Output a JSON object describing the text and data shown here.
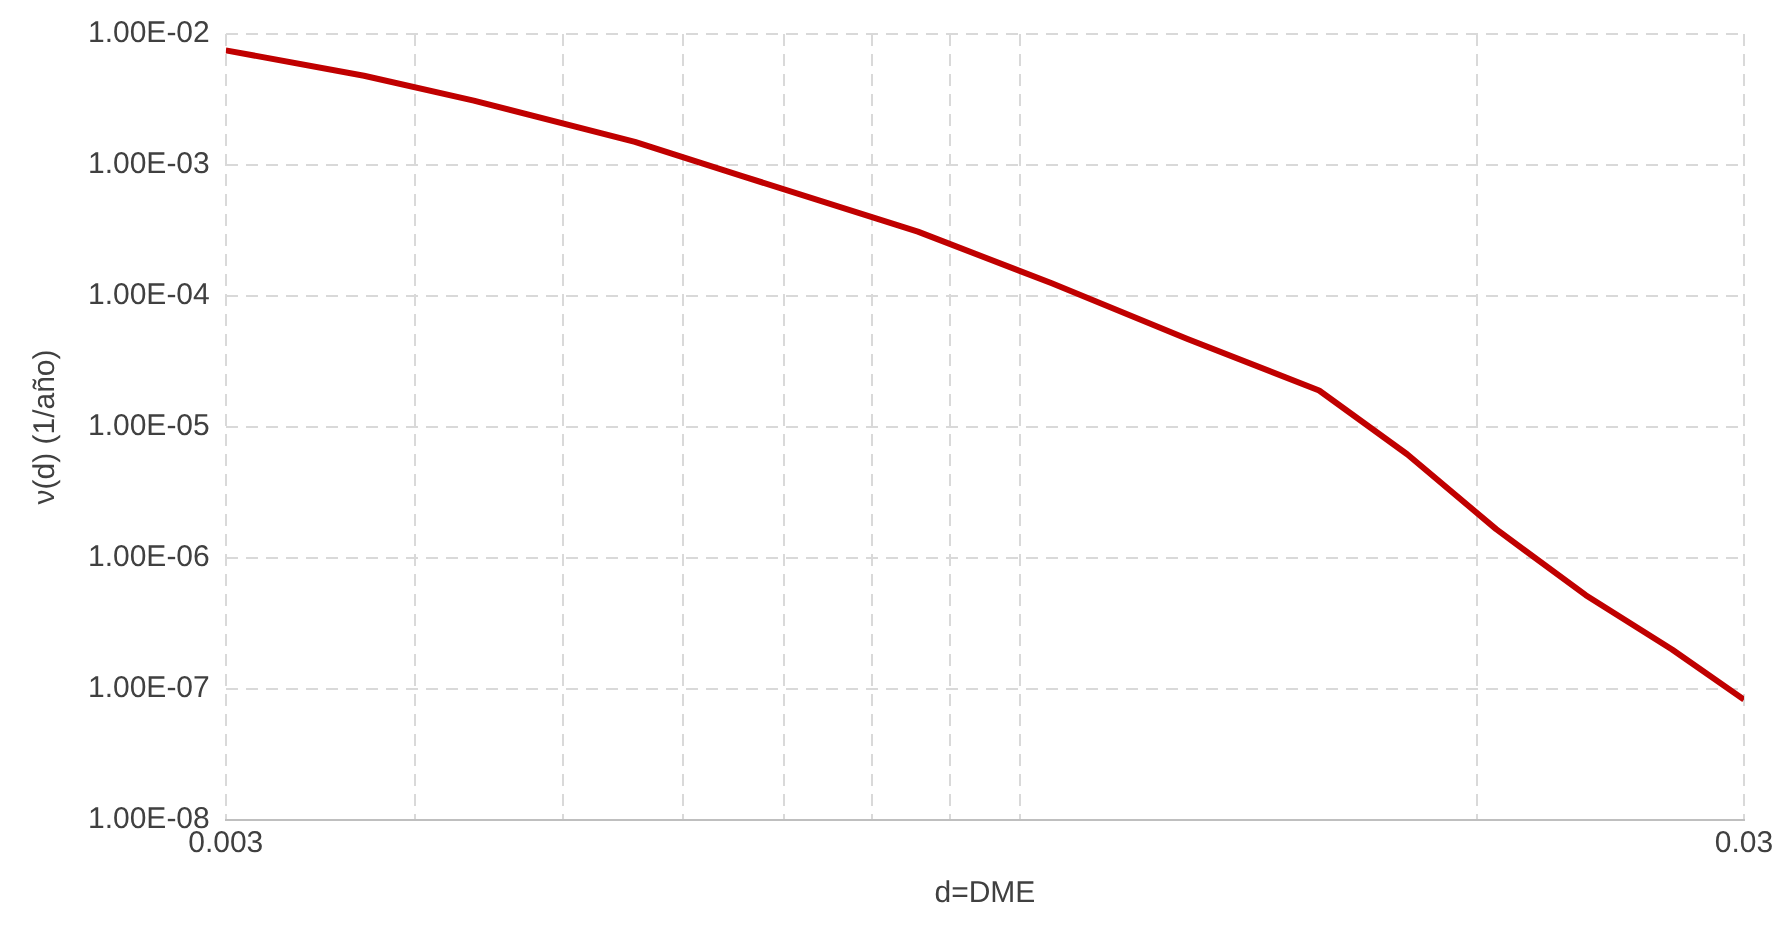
{
  "chart_data": {
    "type": "line",
    "xlabel": "d=DME",
    "ylabel": "ν(d) (1/año)",
    "log": "xy",
    "grid": true,
    "legend": false,
    "marker": "none",
    "line_style": "solid",
    "xlim": [
      0.003,
      0.03
    ],
    "ylim": [
      1e-08,
      0.01
    ],
    "xticks": [
      {
        "value": 0.003,
        "label": "0.003"
      },
      {
        "value": 0.004,
        "label": null
      },
      {
        "value": 0.005,
        "label": null
      },
      {
        "value": 0.006,
        "label": null
      },
      {
        "value": 0.007,
        "label": null
      },
      {
        "value": 0.008,
        "label": null
      },
      {
        "value": 0.009,
        "label": null
      },
      {
        "value": 0.01,
        "label": null
      },
      {
        "value": 0.02,
        "label": null
      },
      {
        "value": 0.03,
        "label": "0.03"
      }
    ],
    "yticks": [
      {
        "value": 1e-08,
        "label": "1.00E-08"
      },
      {
        "value": 1e-07,
        "label": "1.00E-07"
      },
      {
        "value": 1e-06,
        "label": "1.00E-06"
      },
      {
        "value": 1e-05,
        "label": "1.00E-05"
      },
      {
        "value": 0.0001,
        "label": "1.00E-04"
      },
      {
        "value": 0.001,
        "label": "1.00E-03"
      },
      {
        "value": 0.01,
        "label": "1.00E-02"
      }
    ],
    "x": [
      0.003,
      0.0037,
      0.00437,
      0.00558,
      0.00655,
      0.00857,
      0.0105,
      0.0129,
      0.01575,
      0.018,
      0.0206,
      0.0236,
      0.0269,
      0.03
    ],
    "series": [
      {
        "color": "#c00000",
        "values": [
          0.0075,
          0.0048,
          0.0031,
          0.0015,
          0.00083,
          0.00031,
          0.000125,
          4.7e-05,
          1.9e-05,
          6.2e-06,
          1.66e-06,
          5.2e-07,
          2e-07,
          8.3e-08
        ]
      }
    ]
  }
}
